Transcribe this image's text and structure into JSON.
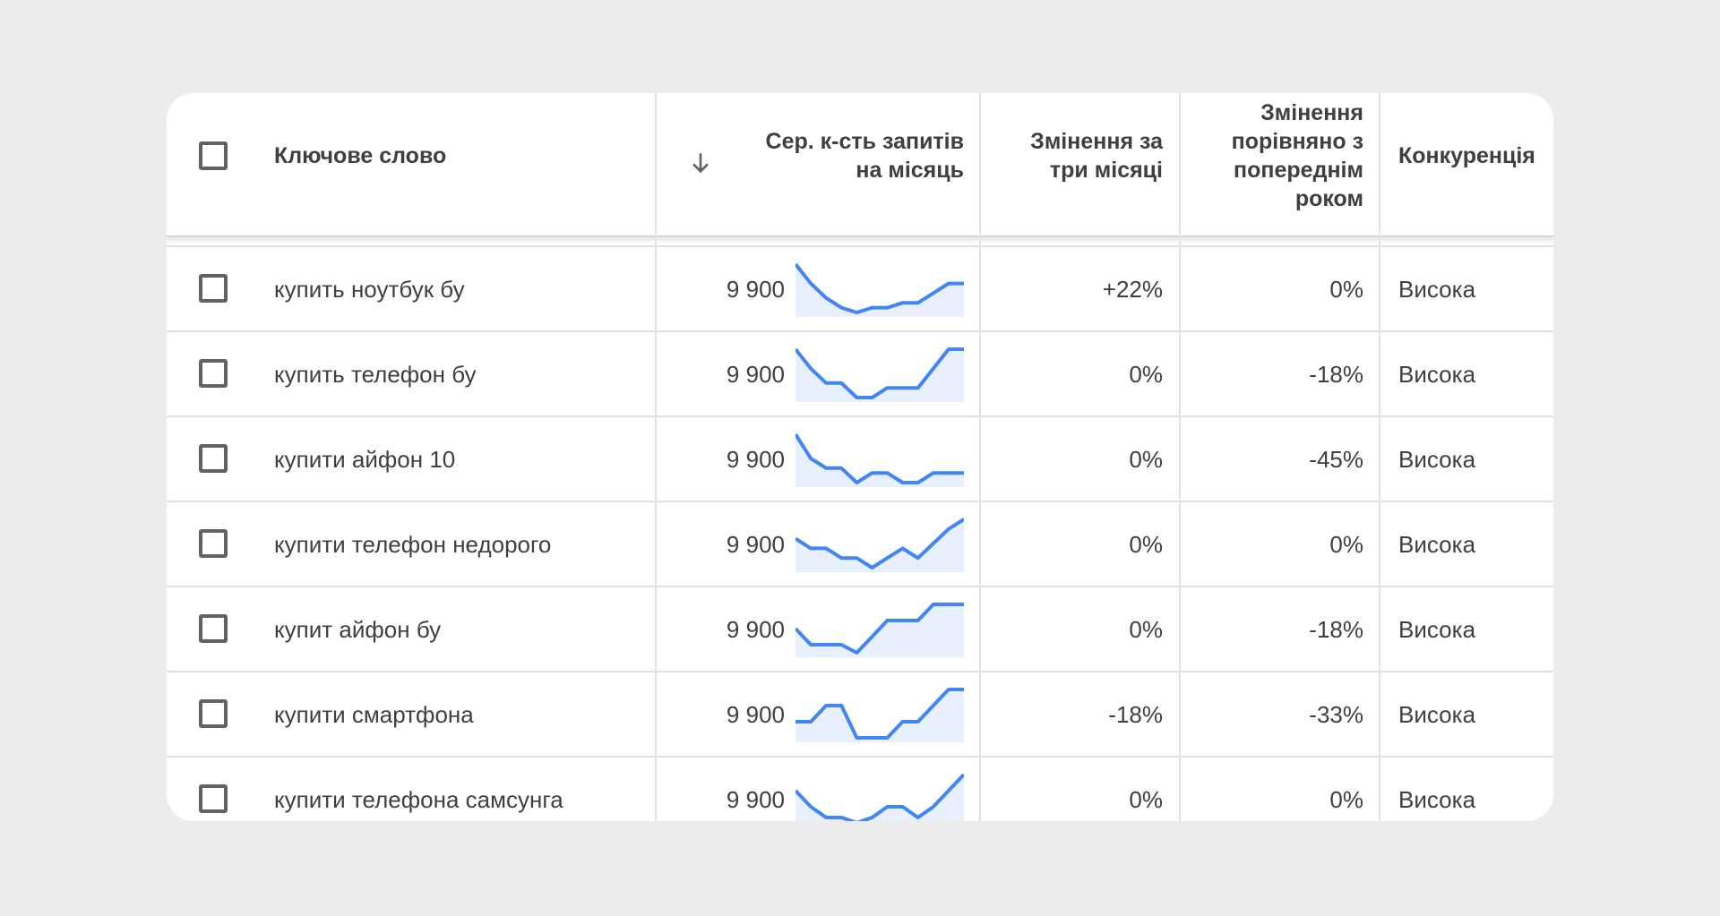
{
  "table": {
    "headers": {
      "keyword": "Ключове слово",
      "avg_searches_line1": "Сер. к-сть запитів",
      "avg_searches_line2": "на місяць",
      "three_month_line1": "Змінення за",
      "three_month_line2": "три місяці",
      "yoy_line1": "Змінення",
      "yoy_line2": "порівняно з",
      "yoy_line3": "попереднім",
      "yoy_line4": "роком",
      "competition": "Конкуренція"
    },
    "sort_icon": "arrow-down-icon",
    "rows": [
      {
        "keyword": "купить ноутбук бу",
        "searches": "9 900",
        "three_month": "+22%",
        "yoy": "0%",
        "competition": "Висока",
        "trend": [
          10,
          6,
          3,
          1,
          0,
          1,
          1,
          2,
          2,
          4,
          6,
          6
        ]
      },
      {
        "keyword": "купить телефон бу",
        "searches": "9 900",
        "three_month": "0%",
        "yoy": "-18%",
        "competition": "Висока",
        "trend": [
          10,
          6,
          3,
          3,
          0,
          0,
          2,
          2,
          2,
          6,
          10,
          10
        ]
      },
      {
        "keyword": "купити айфон 10",
        "searches": "9 900",
        "three_month": "0%",
        "yoy": "-45%",
        "competition": "Висока",
        "trend": [
          10,
          5,
          3,
          3,
          0,
          2,
          2,
          0,
          0,
          2,
          2,
          2
        ]
      },
      {
        "keyword": "купити телефон недорого",
        "searches": "9 900",
        "three_month": "0%",
        "yoy": "0%",
        "competition": "Висока",
        "trend": [
          6,
          4,
          4,
          2,
          2,
          0,
          2,
          4,
          2,
          5,
          8,
          10
        ]
      },
      {
        "keyword": "купит айфон бу",
        "searches": "9 900",
        "three_month": "0%",
        "yoy": "-18%",
        "competition": "Висока",
        "trend": [
          3,
          1,
          1,
          1,
          0,
          2,
          4,
          4,
          4,
          6,
          6,
          6
        ]
      },
      {
        "keyword": "купити смартфона",
        "searches": "9 900",
        "three_month": "-18%",
        "yoy": "-33%",
        "competition": "Висока",
        "trend": [
          1,
          1,
          2,
          2,
          0,
          0,
          0,
          1,
          1,
          2,
          3,
          3
        ]
      },
      {
        "keyword": "купити телефона самсунга",
        "searches": "9 900",
        "three_month": "0%",
        "yoy": "0%",
        "competition": "Висока",
        "trend": [
          6,
          3,
          1,
          1,
          0,
          1,
          3,
          3,
          1,
          3,
          6,
          9
        ]
      }
    ]
  },
  "colors": {
    "page_background": "#ececec",
    "card_background": "#ffffff",
    "sparkline_line": "#4285f4",
    "sparkline_fill": "#e8f0fe",
    "text": "#3c4043",
    "checkbox_border": "#5f6368"
  }
}
